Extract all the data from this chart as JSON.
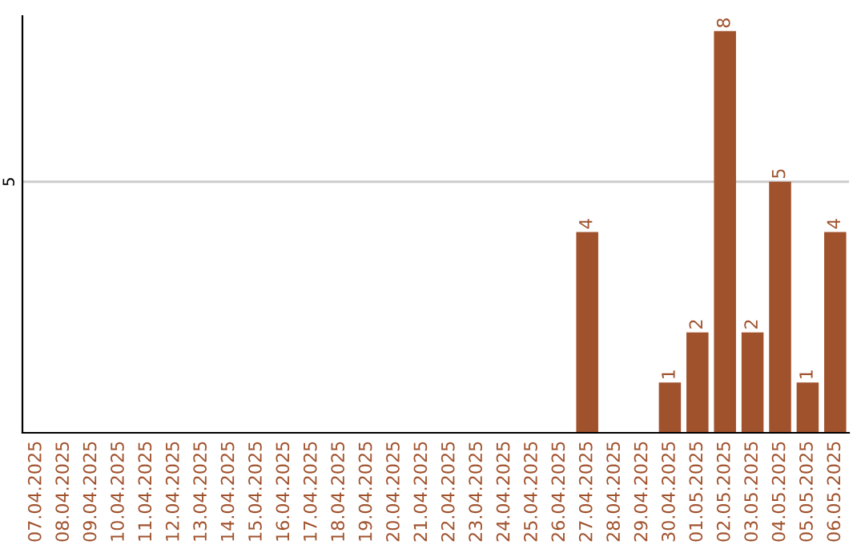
{
  "chart_data": {
    "type": "bar",
    "categories": [
      "07.04.2025",
      "08.04.2025",
      "09.04.2025",
      "10.04.2025",
      "11.04.2025",
      "12.04.2025",
      "13.04.2025",
      "14.04.2025",
      "15.04.2025",
      "16.04.2025",
      "17.04.2025",
      "18.04.2025",
      "19.04.2025",
      "20.04.2025",
      "21.04.2025",
      "22.04.2025",
      "23.04.2025",
      "24.04.2025",
      "25.04.2025",
      "26.04.2025",
      "27.04.2025",
      "28.04.2025",
      "29.04.2025",
      "30.04.2025",
      "01.05.2025",
      "02.05.2025",
      "03.05.2025",
      "04.05.2025",
      "05.05.2025",
      "06.05.2025"
    ],
    "values": [
      null,
      null,
      null,
      null,
      null,
      null,
      null,
      null,
      null,
      null,
      null,
      null,
      null,
      null,
      null,
      null,
      null,
      null,
      null,
      null,
      4,
      null,
      null,
      1,
      2,
      8,
      2,
      5,
      1,
      4
    ],
    "data_labels": true,
    "ylim": [
      0,
      8.3
    ],
    "ref_lines": [
      {
        "axis": "y",
        "value": 5,
        "label": "5",
        "color": "#cccccc"
      }
    ],
    "color": "#a0522d",
    "legend": false
  }
}
